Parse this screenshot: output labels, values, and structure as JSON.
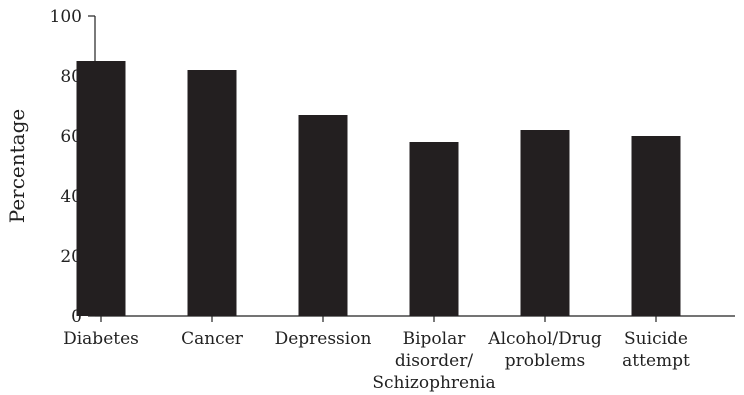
{
  "chart_data": {
    "type": "bar",
    "title": "",
    "xlabel": "",
    "ylabel": "Percentage",
    "categories": [
      [
        "Diabetes"
      ],
      [
        "Cancer"
      ],
      [
        "Depression"
      ],
      [
        "Bipolar",
        "disorder/",
        "Schizophrenia"
      ],
      [
        "Alcohol/Drug",
        "problems"
      ],
      [
        "Suicide",
        "attempt"
      ]
    ],
    "values": [
      85,
      82,
      67,
      58,
      62,
      60
    ],
    "ylim": [
      0,
      100
    ],
    "yticks": [
      0,
      20,
      40,
      60,
      80,
      100
    ],
    "bar_color": "#231f20",
    "axis_color": "#222222",
    "grid": false,
    "legend": "none"
  }
}
